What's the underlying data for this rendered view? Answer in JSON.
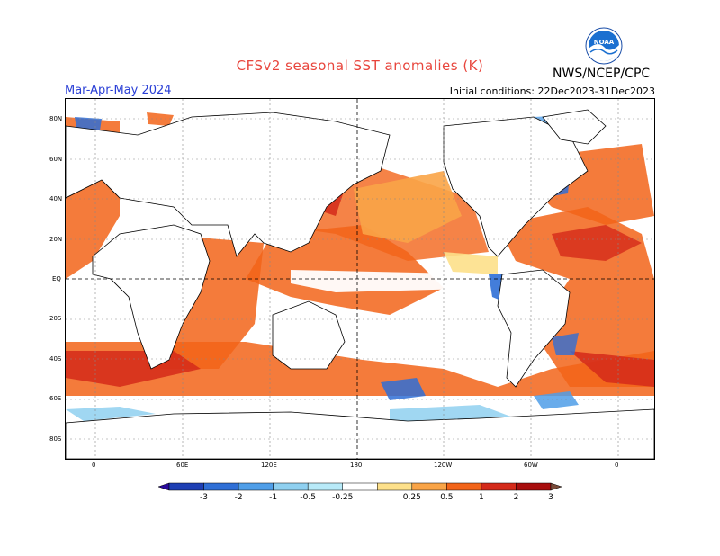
{
  "title": "CFSv2 seasonal SST anomalies (K)",
  "season": "Mar-Apr-May 2024",
  "initial_conditions": "Initial conditions: 22Dec2023-31Dec2023",
  "agency": "NWS/NCEP/CPC",
  "logo": {
    "text": "NOAA",
    "icon": "noaa-logo-icon"
  },
  "map": {
    "lat_labels": [
      "80N",
      "60N",
      "40N",
      "20N",
      "EQ",
      "20S",
      "40S",
      "60S",
      "80S"
    ],
    "lon_labels": [
      "0",
      "60E",
      "120E",
      "180",
      "120W",
      "60W",
      "0"
    ]
  },
  "colorbar": {
    "tick_labels": [
      "-3",
      "-2",
      "-1",
      "-0.5",
      "-0.25",
      "0.25",
      "0.5",
      "1",
      "2",
      "3"
    ],
    "colors": [
      "#2a0a9c",
      "#1e3fb4",
      "#2f6fd6",
      "#4f9ee8",
      "#8fd0f0",
      "#b8eaf8",
      "#ffffff",
      "#fde08a",
      "#f9a447",
      "#f26419",
      "#d42a1a",
      "#a80e0e",
      "#7a4c3a"
    ]
  }
}
